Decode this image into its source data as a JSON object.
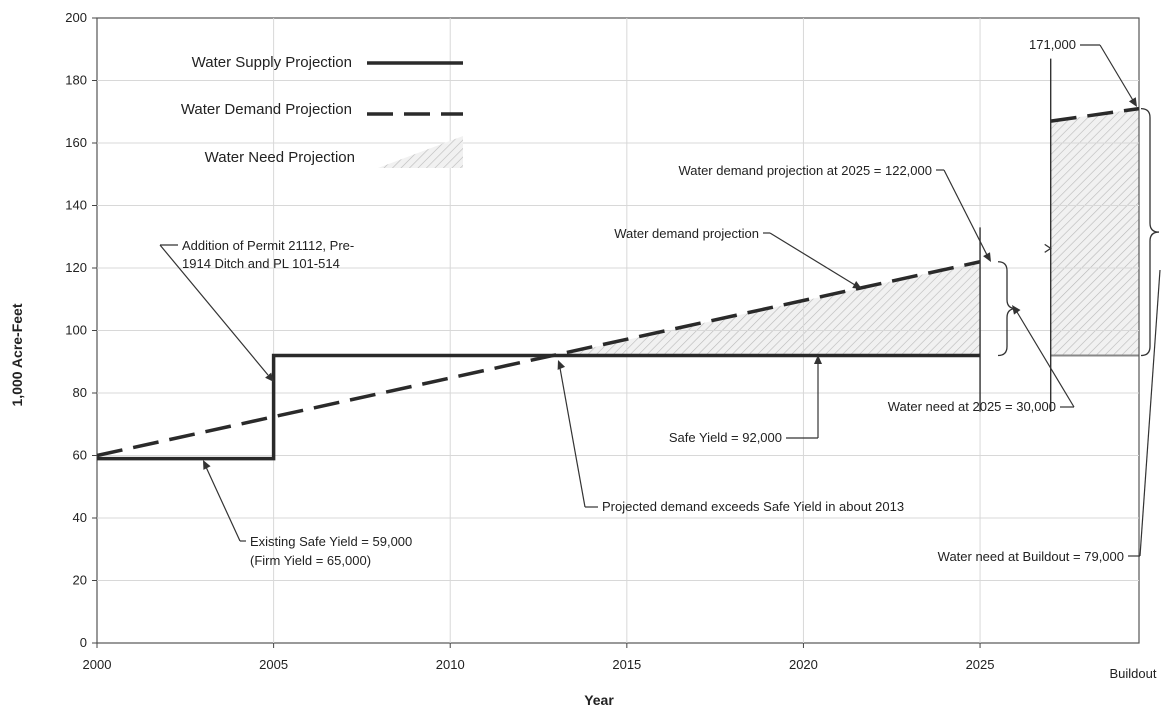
{
  "chart_data": {
    "type": "line",
    "xlabel": "Year",
    "ylabel": "1,000 Acre-Feet",
    "xlim": [
      2000,
      2029.5
    ],
    "ylim": [
      0,
      200
    ],
    "x_ticks": [
      {
        "value": 2000,
        "label": "2000"
      },
      {
        "value": 2005,
        "label": "2005"
      },
      {
        "value": 2010,
        "label": "2010"
      },
      {
        "value": 2015,
        "label": "2015"
      },
      {
        "value": 2020,
        "label": "2020"
      },
      {
        "value": 2025,
        "label": "2025"
      },
      {
        "value": 2029.5,
        "label": "Buildout"
      }
    ],
    "y_ticks": [
      0,
      20,
      40,
      60,
      80,
      100,
      120,
      140,
      160,
      180,
      200
    ],
    "legend": [
      {
        "key": "supply",
        "label": "Water Supply Projection"
      },
      {
        "key": "demand",
        "label": "Water Demand Projection"
      },
      {
        "key": "need",
        "label": "Water Need Projection"
      }
    ],
    "series": [
      {
        "key": "supply",
        "style": "solid",
        "color": "#2a2a2a",
        "x": [
          2000,
          2005,
          2005,
          2025
        ],
        "y": [
          59,
          59,
          92,
          92
        ]
      },
      {
        "key": "demand",
        "style": "dashed",
        "color": "#2a2a2a",
        "x": [
          2000,
          2025
        ],
        "y": [
          60,
          122
        ]
      },
      {
        "key": "demand_buildout",
        "style": "dashed",
        "color": "#2a2a2a",
        "x": [
          2027,
          2029.5
        ],
        "y": [
          167,
          171
        ]
      }
    ],
    "need_areas": [
      {
        "x": [
          2013,
          2025
        ],
        "lower": [
          92,
          92
        ],
        "upper": [
          92,
          122
        ]
      },
      {
        "x": [
          2027,
          2029.5
        ],
        "lower": [
          92,
          92
        ],
        "upper": [
          167,
          171
        ]
      }
    ],
    "annotations": [
      {
        "lines": [
          "171,000"
        ]
      },
      {
        "lines": [
          "Water demand projection at 2025 = 122,000"
        ]
      },
      {
        "lines": [
          "Water demand projection"
        ]
      },
      {
        "lines": [
          "Addition of Permit 21112, Pre-",
          "1914 Ditch and PL 101-514"
        ]
      },
      {
        "lines": [
          "Water need at 2025 = 30,000"
        ]
      },
      {
        "lines": [
          "Safe Yield = 92,000"
        ]
      },
      {
        "lines": [
          "Projected demand exceeds Safe Yield in about 2013"
        ]
      },
      {
        "lines": [
          "Existing Safe Yield = 59,000",
          "(Firm Yield = 65,000)"
        ]
      },
      {
        "lines": [
          "Water need at Buildout = 79,000"
        ]
      }
    ]
  }
}
